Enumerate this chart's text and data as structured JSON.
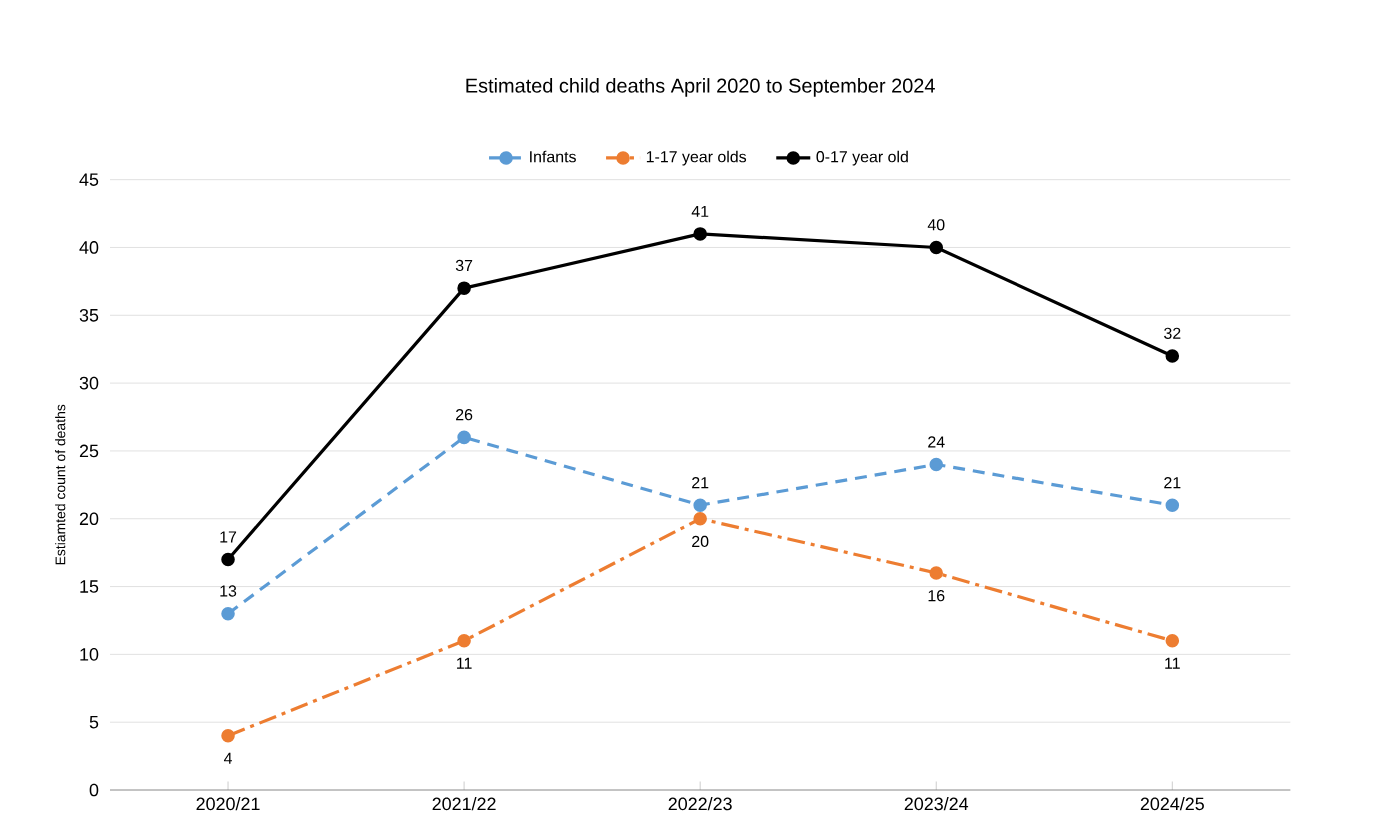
{
  "chart_data": {
    "type": "line",
    "title": "Estimated child deaths April 2020 to September 2024",
    "ylabel": "Estiamted count of deaths",
    "categories": [
      "2020/21",
      "2021/22",
      "2022/23",
      "2023/24",
      "2024/25"
    ],
    "series": [
      {
        "name": "Infants",
        "color": "#5b9bd5",
        "values": [
          13,
          26,
          21,
          24,
          21
        ],
        "line_style": "dashed",
        "marker": "circle"
      },
      {
        "name": "1-17 year olds",
        "color": "#ed7d31",
        "values": [
          4,
          11,
          20,
          16,
          11
        ],
        "line_style": "dashdot",
        "marker": "circle"
      },
      {
        "name": "0-17 year old",
        "color": "#000000",
        "values": [
          17,
          37,
          41,
          40,
          32
        ],
        "line_style": "solid",
        "marker": "circle"
      }
    ],
    "ylim": [
      0,
      45
    ],
    "yticks": [
      0,
      5,
      10,
      15,
      20,
      25,
      30,
      35,
      40,
      45
    ],
    "grid": "y",
    "legend": "top",
    "data_labels": true
  }
}
